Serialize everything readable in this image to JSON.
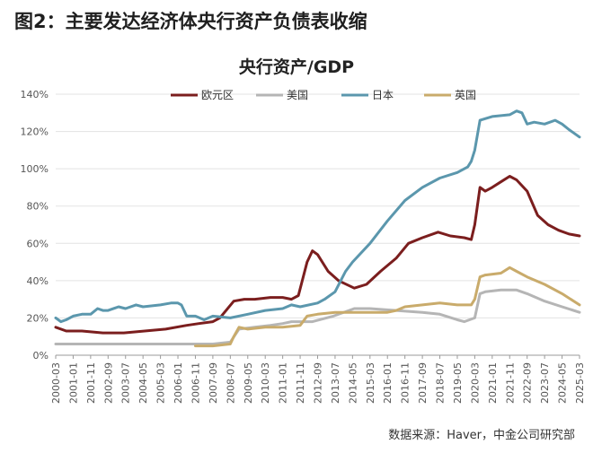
{
  "figure_title": "图2：主要发达经济体央行资产负债表收缩",
  "source_note": "数据来源：Haver，中金公司研究部",
  "chart_data": {
    "type": "line",
    "title": "央行资产/GDP",
    "xlabel": "",
    "ylabel": "",
    "ylim": [
      0,
      140
    ],
    "y_ticks": [
      "0%",
      "20%",
      "40%",
      "60%",
      "80%",
      "100%",
      "120%",
      "140%"
    ],
    "x_range": [
      "2000-03",
      "2025-03"
    ],
    "x_ticks": [
      "2000-03",
      "2001-01",
      "2001-11",
      "2002-09",
      "2003-07",
      "2004-05",
      "2005-03",
      "2006-01",
      "2006-11",
      "2007-09",
      "2008-07",
      "2009-05",
      "2010-03",
      "2011-01",
      "2011-11",
      "2012-09",
      "2013-07",
      "2014-05",
      "2015-03",
      "2016-01",
      "2016-11",
      "2017-09",
      "2018-07",
      "2019-05",
      "2020-03",
      "2021-01",
      "2021-11",
      "2022-09",
      "2023-07",
      "2024-05",
      "2025-03"
    ],
    "legend_position": "top",
    "grid": "horizontal",
    "series": [
      {
        "name": "欧元区",
        "color": "#7b1e1e",
        "points": [
          [
            "2000-03",
            15
          ],
          [
            "2000-09",
            13
          ],
          [
            "2001-06",
            13
          ],
          [
            "2002-06",
            12
          ],
          [
            "2003-06",
            12
          ],
          [
            "2004-06",
            13
          ],
          [
            "2005-06",
            14
          ],
          [
            "2006-06",
            16
          ],
          [
            "2007-01",
            17
          ],
          [
            "2007-09",
            18
          ],
          [
            "2008-01",
            20
          ],
          [
            "2008-09",
            29
          ],
          [
            "2009-03",
            30
          ],
          [
            "2009-09",
            30
          ],
          [
            "2010-06",
            31
          ],
          [
            "2011-01",
            31
          ],
          [
            "2011-06",
            30
          ],
          [
            "2011-10",
            32
          ],
          [
            "2012-03",
            50
          ],
          [
            "2012-06",
            56
          ],
          [
            "2012-09",
            54
          ],
          [
            "2013-03",
            45
          ],
          [
            "2013-09",
            40
          ],
          [
            "2014-06",
            36
          ],
          [
            "2015-01",
            38
          ],
          [
            "2015-09",
            45
          ],
          [
            "2016-06",
            52
          ],
          [
            "2017-01",
            60
          ],
          [
            "2017-09",
            63
          ],
          [
            "2018-06",
            66
          ],
          [
            "2019-01",
            64
          ],
          [
            "2019-09",
            63
          ],
          [
            "2020-01",
            62
          ],
          [
            "2020-03",
            70
          ],
          [
            "2020-06",
            90
          ],
          [
            "2020-09",
            88
          ],
          [
            "2021-01",
            90
          ],
          [
            "2021-06",
            93
          ],
          [
            "2021-11",
            96
          ],
          [
            "2022-03",
            94
          ],
          [
            "2022-09",
            88
          ],
          [
            "2023-03",
            75
          ],
          [
            "2023-09",
            70
          ],
          [
            "2024-03",
            67
          ],
          [
            "2024-09",
            65
          ],
          [
            "2025-03",
            64
          ]
        ]
      },
      {
        "name": "美国",
        "color": "#b5b5b5",
        "points": [
          [
            "2000-03",
            6
          ],
          [
            "2002-06",
            6
          ],
          [
            "2004-06",
            6
          ],
          [
            "2006-06",
            6
          ],
          [
            "2007-09",
            6
          ],
          [
            "2008-07",
            7
          ],
          [
            "2008-12",
            14
          ],
          [
            "2009-09",
            15
          ],
          [
            "2010-06",
            16
          ],
          [
            "2011-01",
            17
          ],
          [
            "2011-06",
            18
          ],
          [
            "2012-06",
            18
          ],
          [
            "2013-06",
            21
          ],
          [
            "2014-06",
            25
          ],
          [
            "2015-03",
            25
          ],
          [
            "2016-06",
            24
          ],
          [
            "2017-09",
            23
          ],
          [
            "2018-07",
            22
          ],
          [
            "2019-05",
            19
          ],
          [
            "2019-09",
            18
          ],
          [
            "2020-03",
            20
          ],
          [
            "2020-06",
            33
          ],
          [
            "2020-09",
            34
          ],
          [
            "2021-06",
            35
          ],
          [
            "2021-11",
            35
          ],
          [
            "2022-03",
            35
          ],
          [
            "2022-09",
            33
          ],
          [
            "2023-07",
            29
          ],
          [
            "2024-05",
            26
          ],
          [
            "2025-03",
            23
          ]
        ]
      },
      {
        "name": "日本",
        "color": "#5b97ad",
        "points": [
          [
            "2000-03",
            20
          ],
          [
            "2000-06",
            18
          ],
          [
            "2000-09",
            19
          ],
          [
            "2001-01",
            21
          ],
          [
            "2001-06",
            22
          ],
          [
            "2001-11",
            22
          ],
          [
            "2002-03",
            25
          ],
          [
            "2002-06",
            24
          ],
          [
            "2002-09",
            24
          ],
          [
            "2003-03",
            26
          ],
          [
            "2003-07",
            25
          ],
          [
            "2004-01",
            27
          ],
          [
            "2004-05",
            26
          ],
          [
            "2005-03",
            27
          ],
          [
            "2005-09",
            28
          ],
          [
            "2006-01",
            28
          ],
          [
            "2006-03",
            27
          ],
          [
            "2006-06",
            21
          ],
          [
            "2006-11",
            21
          ],
          [
            "2007-04",
            19
          ],
          [
            "2007-09",
            21
          ],
          [
            "2008-07",
            20
          ],
          [
            "2009-05",
            22
          ],
          [
            "2010-03",
            24
          ],
          [
            "2011-01",
            25
          ],
          [
            "2011-06",
            27
          ],
          [
            "2011-11",
            26
          ],
          [
            "2012-09",
            28
          ],
          [
            "2013-01",
            30
          ],
          [
            "2013-07",
            34
          ],
          [
            "2014-01",
            45
          ],
          [
            "2014-05",
            50
          ],
          [
            "2015-03",
            60
          ],
          [
            "2016-01",
            72
          ],
          [
            "2016-11",
            83
          ],
          [
            "2017-09",
            90
          ],
          [
            "2018-07",
            95
          ],
          [
            "2019-05",
            98
          ],
          [
            "2019-11",
            101
          ],
          [
            "2020-01",
            104
          ],
          [
            "2020-03",
            110
          ],
          [
            "2020-06",
            126
          ],
          [
            "2021-01",
            128
          ],
          [
            "2021-11",
            129
          ],
          [
            "2022-03",
            131
          ],
          [
            "2022-06",
            130
          ],
          [
            "2022-09",
            124
          ],
          [
            "2023-01",
            125
          ],
          [
            "2023-07",
            124
          ],
          [
            "2024-01",
            126
          ],
          [
            "2024-05",
            124
          ],
          [
            "2024-09",
            121
          ],
          [
            "2025-03",
            117
          ]
        ]
      },
      {
        "name": "英国",
        "color": "#c9ab6b",
        "points": [
          [
            "2006-11",
            5
          ],
          [
            "2007-09",
            5
          ],
          [
            "2008-07",
            6
          ],
          [
            "2008-09",
            10
          ],
          [
            "2008-12",
            15
          ],
          [
            "2009-05",
            14
          ],
          [
            "2010-03",
            15
          ],
          [
            "2011-01",
            15
          ],
          [
            "2011-11",
            16
          ],
          [
            "2012-03",
            21
          ],
          [
            "2012-09",
            22
          ],
          [
            "2013-07",
            23
          ],
          [
            "2014-05",
            23
          ],
          [
            "2015-03",
            23
          ],
          [
            "2016-01",
            23
          ],
          [
            "2016-06",
            24
          ],
          [
            "2016-11",
            26
          ],
          [
            "2017-09",
            27
          ],
          [
            "2018-07",
            28
          ],
          [
            "2019-05",
            27
          ],
          [
            "2020-01",
            27
          ],
          [
            "2020-03",
            30
          ],
          [
            "2020-06",
            42
          ],
          [
            "2020-09",
            43
          ],
          [
            "2021-06",
            44
          ],
          [
            "2021-11",
            47
          ],
          [
            "2022-03",
            45
          ],
          [
            "2022-09",
            42
          ],
          [
            "2023-07",
            38
          ],
          [
            "2024-05",
            33
          ],
          [
            "2025-03",
            27
          ]
        ]
      }
    ]
  }
}
